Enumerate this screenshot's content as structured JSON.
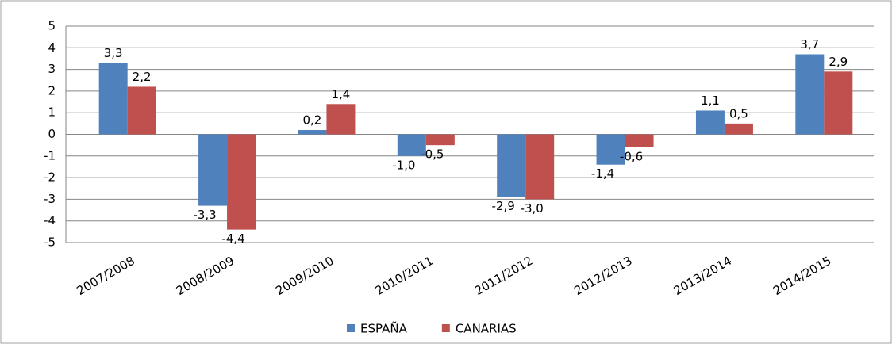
{
  "chart_data": {
    "type": "bar",
    "categories": [
      "2007/2008",
      "2008/2009",
      "2009/2010",
      "2010/2011",
      "2011/2012",
      "2012/2013",
      "2013/2014",
      "2014/2015"
    ],
    "series": [
      {
        "name": "ESPAÑA",
        "color": "#4f81bd",
        "values": [
          3.3,
          -3.3,
          0.2,
          -1.0,
          -2.9,
          -1.4,
          1.1,
          3.7
        ],
        "value_labels": [
          "3,3",
          "-3,3",
          "0,2",
          "-1,0",
          "-2,9",
          "-1,4",
          "1,1",
          "3,7"
        ]
      },
      {
        "name": "CANARIAS",
        "color": "#c0504d",
        "values": [
          2.2,
          -4.4,
          1.4,
          -0.5,
          -3.0,
          -0.6,
          0.5,
          2.9
        ],
        "value_labels": [
          "2,2",
          "-4,4",
          "1,4",
          "-0,5",
          "-3,0",
          "-0,6",
          "0,5",
          "2,9"
        ]
      }
    ],
    "ylim": [
      -5,
      5
    ],
    "yticks": [
      -5,
      -4,
      -3,
      -2,
      -1,
      0,
      1,
      2,
      3,
      4,
      5
    ],
    "grid": true,
    "legend": "bottom"
  }
}
